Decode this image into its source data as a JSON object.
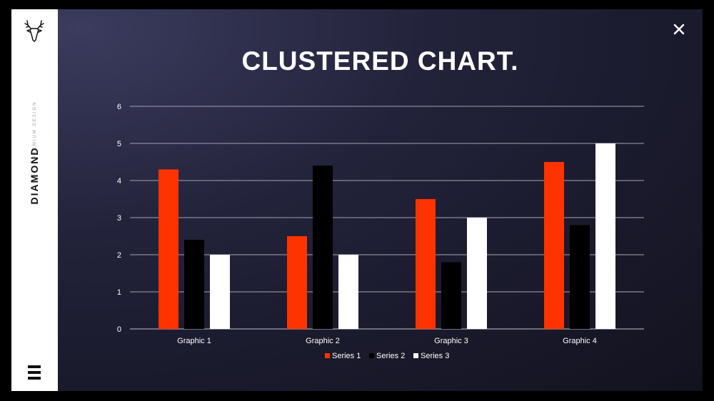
{
  "sidebar": {
    "brand": "DIAMOND",
    "tagline": "PREMIUM DESIGN",
    "logo_icon": "deer-head-icon",
    "menu_icon": "hamburger-menu-icon"
  },
  "header": {
    "title": "CLUSTERED CHART.",
    "close_icon": "close-icon"
  },
  "colors": {
    "series1": "#ff3300",
    "series2": "#000000",
    "series3": "#ffffff",
    "gridline": "#8a8a96",
    "text": "#ffffff"
  },
  "chart_data": {
    "type": "bar",
    "categories": [
      "Graphic 1",
      "Graphic 2",
      "Graphic 3",
      "Graphic 4"
    ],
    "series": [
      {
        "name": "Series 1",
        "values": [
          4.3,
          2.5,
          3.5,
          4.5
        ]
      },
      {
        "name": "Series 2",
        "values": [
          2.4,
          4.4,
          1.8,
          2.8
        ]
      },
      {
        "name": "Series 3",
        "values": [
          2.0,
          2.0,
          3.0,
          5.0
        ]
      }
    ],
    "ylim": [
      0,
      6
    ],
    "yticks": [
      "0",
      "1",
      "2",
      "3",
      "4",
      "5",
      "6"
    ],
    "grid": true,
    "legend_position": "bottom"
  }
}
